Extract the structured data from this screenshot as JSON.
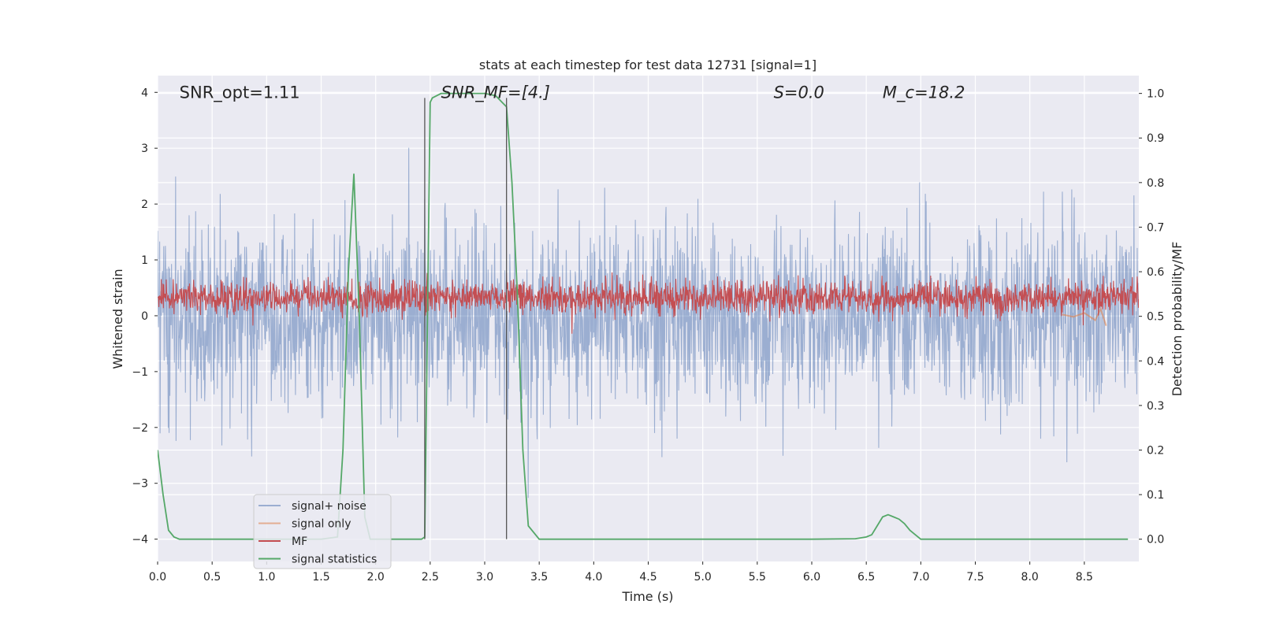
{
  "chart_data": {
    "type": "line",
    "title": "stats at each timestep for test data 12731 [signal=1]",
    "xlabel": "Time (s)",
    "ylabel_left": "Whitened strain",
    "ylabel_right": "Detection probability/MF",
    "xlim": [
      0.0,
      9.0
    ],
    "ylim_left": [
      -4.4,
      4.3
    ],
    "ylim_right": [
      -0.05,
      1.04
    ],
    "x_ticks": [
      0.0,
      0.5,
      1.0,
      1.5,
      2.0,
      2.5,
      3.0,
      3.5,
      4.0,
      4.5,
      5.0,
      5.5,
      6.0,
      6.5,
      7.0,
      7.5,
      8.0,
      8.5
    ],
    "x_tick_labels": [
      "0.0",
      "0.5",
      "1.0",
      "1.5",
      "2.0",
      "2.5",
      "3.0",
      "3.5",
      "4.0",
      "4.5",
      "5.0",
      "5.5",
      "6.0",
      "6.5",
      "7.0",
      "7.5",
      "8.0",
      "8.5"
    ],
    "y_left_ticks": [
      -4,
      -3,
      -2,
      -1,
      0,
      1,
      2,
      3,
      4
    ],
    "y_left_tick_labels": [
      "−4",
      "−3",
      "−2",
      "−1",
      "0",
      "1",
      "2",
      "3",
      "4"
    ],
    "y_right_ticks": [
      0.0,
      0.1,
      0.2,
      0.3,
      0.4,
      0.5,
      0.6,
      0.7,
      0.8,
      0.9,
      1.0
    ],
    "y_right_tick_labels": [
      "0.0",
      "0.1",
      "0.2",
      "0.3",
      "0.4",
      "0.5",
      "0.6",
      "0.7",
      "0.8",
      "0.9",
      "1.0"
    ],
    "annotations": [
      {
        "text": "SNR_opt=1.11",
        "x": 0.2,
        "y": 4.0,
        "italic": false
      },
      {
        "text": "SNR_MF=[4.]",
        "x": 2.6,
        "y": 4.0,
        "italic": true
      },
      {
        "text": "S=0.0",
        "x": 5.65,
        "y": 4.0,
        "italic": true
      },
      {
        "text": "M_c=18.2",
        "x": 6.65,
        "y": 4.0,
        "italic": true
      }
    ],
    "vlines": [
      {
        "x": 2.45,
        "y_top": 3.9,
        "y_bottom": -4.0,
        "color": "#555555"
      },
      {
        "x": 3.2,
        "y_top": 3.9,
        "y_bottom": -4.0,
        "color": "#555555"
      }
    ],
    "series": [
      {
        "name": "signal+ noise",
        "axis": "left",
        "color": "#4c72b0",
        "opacity": 0.5,
        "style": "noise",
        "amplitude_std": 0.82,
        "mean": 0.0,
        "x_range": [
          0.0,
          9.0
        ]
      },
      {
        "name": "signal only",
        "axis": "left",
        "color": "#dd8452",
        "opacity": 0.6,
        "style": "chirp",
        "x": [
          8.3,
          8.4,
          8.5,
          8.6,
          8.65,
          8.7
        ],
        "values": [
          0.02,
          -0.02,
          0.05,
          -0.08,
          0.12,
          -0.18
        ]
      },
      {
        "name": "MF",
        "axis": "left",
        "color": "#c44e52",
        "opacity": 1.0,
        "style": "noise",
        "amplitude_std": 0.15,
        "mean": 0.33,
        "x_range": [
          0.0,
          9.0
        ]
      },
      {
        "name": "signal statistics",
        "axis": "right",
        "color": "#55a868",
        "opacity": 1.0,
        "style": "line",
        "x": [
          0.0,
          0.05,
          0.1,
          0.15,
          0.2,
          0.3,
          0.5,
          1.0,
          1.5,
          1.65,
          1.7,
          1.75,
          1.8,
          1.85,
          1.9,
          1.95,
          2.0,
          2.3,
          2.42,
          2.45,
          2.5,
          2.52,
          2.6,
          3.0,
          3.1,
          3.2,
          3.25,
          3.3,
          3.35,
          3.4,
          3.5,
          4.0,
          5.0,
          6.0,
          6.4,
          6.5,
          6.55,
          6.6,
          6.65,
          6.7,
          6.75,
          6.8,
          6.85,
          6.9,
          6.95,
          7.0,
          7.5,
          8.0,
          8.5,
          8.9
        ],
        "values": [
          0.2,
          0.1,
          0.02,
          0.005,
          0.0,
          0.0,
          0.0,
          0.0,
          0.0,
          0.005,
          0.2,
          0.6,
          0.82,
          0.5,
          0.05,
          0.0,
          0.0,
          0.0,
          0.0,
          0.005,
          0.98,
          0.99,
          1.0,
          1.0,
          0.995,
          0.97,
          0.8,
          0.55,
          0.2,
          0.03,
          0.0,
          0.0,
          0.0,
          0.0,
          0.001,
          0.005,
          0.01,
          0.03,
          0.05,
          0.055,
          0.05,
          0.045,
          0.035,
          0.02,
          0.01,
          0.0,
          0.0,
          0.0,
          0.0,
          0.0
        ]
      }
    ],
    "legend": {
      "placement": "lower-left",
      "entries": [
        {
          "label": "signal+ noise",
          "color": "#4c72b0",
          "opacity": 0.5
        },
        {
          "label": "signal only",
          "color": "#dd8452",
          "opacity": 0.6
        },
        {
          "label": "MF",
          "color": "#c44e52",
          "opacity": 1.0
        },
        {
          "label": "signal statistics",
          "color": "#55a868",
          "opacity": 1.0
        }
      ]
    },
    "grid": true,
    "background": "#eaeaf2"
  }
}
